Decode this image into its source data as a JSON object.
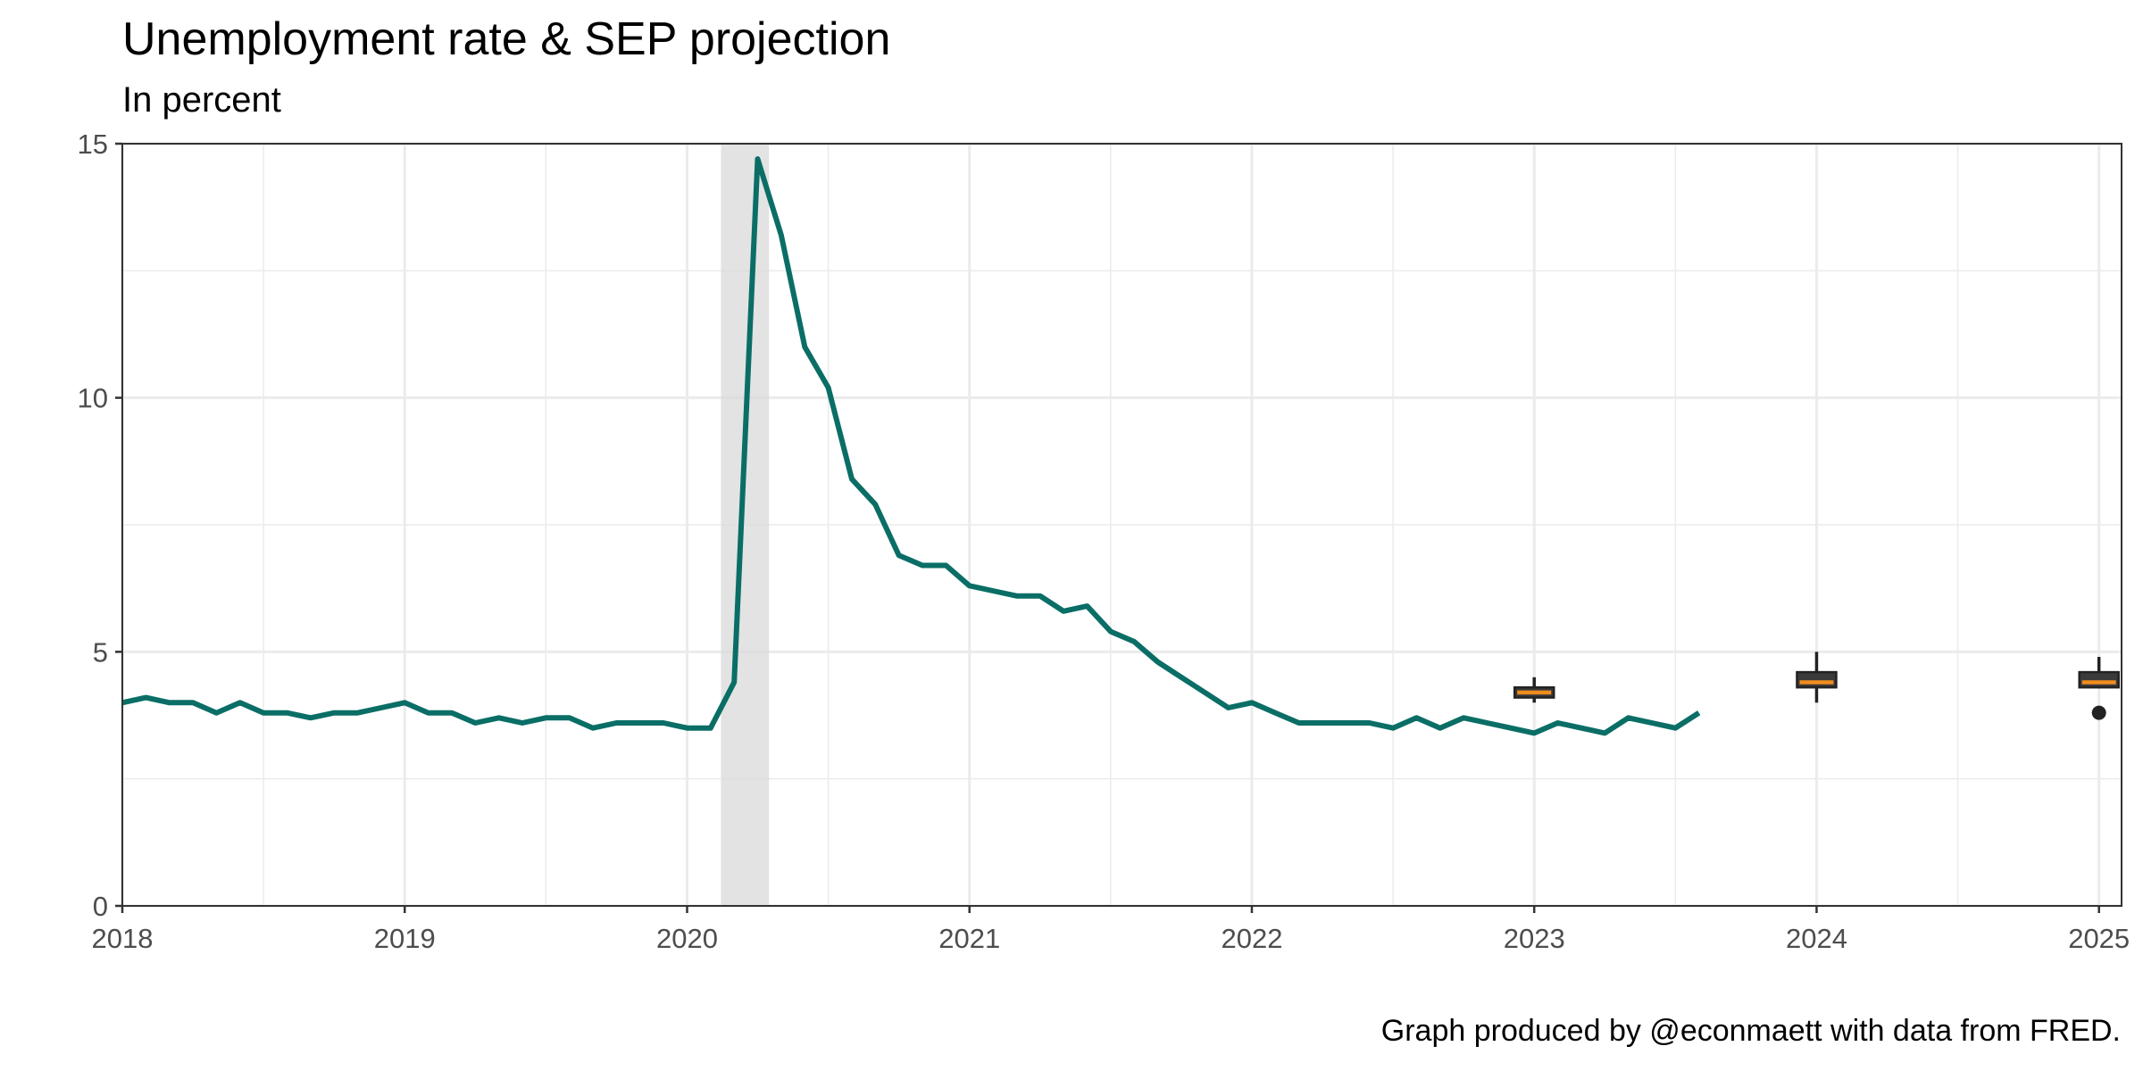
{
  "title": "Unemployment rate & SEP projection",
  "subtitle": "In percent",
  "caption": "Graph produced by @econmaett with data from FRED.",
  "colors": {
    "line": "#0a6e66",
    "recession": "#d9d9d9",
    "box_fill": "#3a3a3a",
    "median": "#f08c1e",
    "grid": "#ebebeb",
    "axis": "#333333"
  },
  "chart_data": {
    "type": "line",
    "xlabel": "",
    "ylabel": "",
    "xlim": [
      2018,
      2025.08
    ],
    "ylim": [
      0,
      15
    ],
    "x_ticks": [
      2018,
      2019,
      2020,
      2021,
      2022,
      2023,
      2024,
      2025
    ],
    "x_tick_labels": [
      "2018",
      "2019",
      "2020",
      "2021",
      "2022",
      "2023",
      "2024",
      "2025"
    ],
    "y_ticks": [
      0,
      5,
      10,
      15
    ],
    "y_tick_labels": [
      "0",
      "5",
      "10",
      "15"
    ],
    "grid": true,
    "recession": {
      "start": 2020.12,
      "end": 2020.29
    },
    "series": [
      {
        "start": "2018-01",
        "frequency": "monthly",
        "values": [
          4.0,
          4.1,
          4.0,
          4.0,
          3.8,
          4.0,
          3.8,
          3.8,
          3.7,
          3.8,
          3.8,
          3.9,
          4.0,
          3.8,
          3.8,
          3.6,
          3.7,
          3.6,
          3.7,
          3.7,
          3.5,
          3.6,
          3.6,
          3.6,
          3.5,
          3.5,
          4.4,
          14.7,
          13.2,
          11.0,
          10.2,
          8.4,
          7.9,
          6.9,
          6.7,
          6.7,
          6.3,
          6.2,
          6.1,
          6.1,
          5.8,
          5.9,
          5.4,
          5.2,
          4.8,
          4.5,
          4.2,
          3.9,
          4.0,
          3.8,
          3.6,
          3.6,
          3.6,
          3.6,
          3.5,
          3.7,
          3.5,
          3.7,
          3.6,
          3.5,
          3.4,
          3.6,
          3.5,
          3.4,
          3.7,
          3.6,
          3.5,
          3.8
        ]
      }
    ],
    "projections": [
      {
        "year": 2023,
        "min": 4.0,
        "q1": 4.1,
        "median": 4.2,
        "q3": 4.3,
        "max": 4.5,
        "outliers": []
      },
      {
        "year": 2024,
        "min": 4.0,
        "q1": 4.3,
        "median": 4.4,
        "q3": 4.6,
        "max": 5.0,
        "outliers": []
      },
      {
        "year": 2025,
        "min": 4.3,
        "q1": 4.3,
        "median": 4.4,
        "q3": 4.6,
        "max": 4.9,
        "outliers": [
          3.8
        ]
      }
    ]
  }
}
